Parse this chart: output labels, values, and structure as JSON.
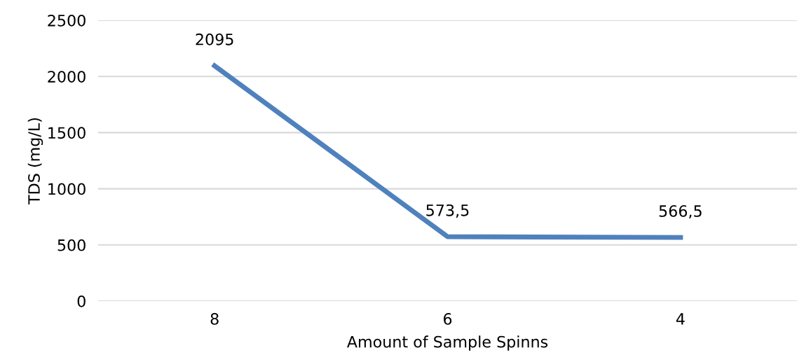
{
  "chart_data": {
    "type": "line",
    "xlabel": "Amount of Sample Spinns",
    "ylabel": "TDS (mg/L)",
    "categories": [
      "8",
      "6",
      "4"
    ],
    "series": [
      {
        "color": "#4f81bd",
        "values": [
          2095,
          573.5,
          566.5
        ],
        "value_labels": [
          "2095",
          "573,5",
          "566,5"
        ]
      }
    ],
    "ylim": [
      0,
      2500
    ],
    "yticks": [
      0,
      500,
      1000,
      1500,
      2000,
      2500
    ],
    "grid": "y",
    "legend": false,
    "marker": "none",
    "line_style": "solid"
  }
}
